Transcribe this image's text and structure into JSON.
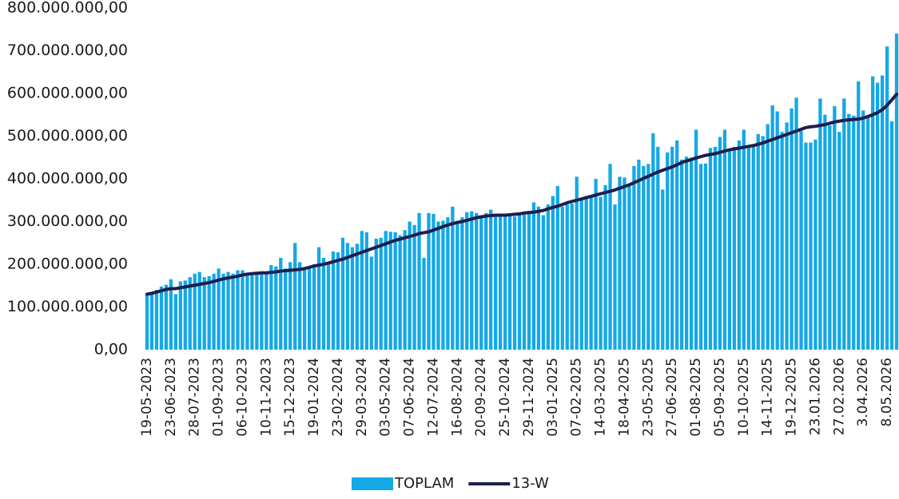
{
  "chart_data": {
    "type": "bar",
    "categories": [
      "19-05-2023",
      null,
      null,
      null,
      null,
      "23-06-2023",
      null,
      null,
      null,
      null,
      "28-07-2023",
      null,
      null,
      null,
      null,
      "01-09-2023",
      null,
      null,
      null,
      null,
      "06-10-2023",
      null,
      null,
      null,
      null,
      "10-11-2023",
      null,
      null,
      null,
      null,
      "15-12-2023",
      null,
      null,
      null,
      null,
      "19-01-2024",
      null,
      null,
      null,
      null,
      "23-02-2024",
      null,
      null,
      null,
      null,
      "29-03-2024",
      null,
      null,
      null,
      null,
      "03-05-2024",
      null,
      null,
      null,
      null,
      "07-06-2024",
      null,
      null,
      null,
      null,
      "12-07-2024",
      null,
      null,
      null,
      null,
      "16-08-2024",
      null,
      null,
      null,
      null,
      "20-09-2024",
      null,
      null,
      null,
      null,
      "25-10-2024",
      null,
      null,
      null,
      null,
      "29-11-2024",
      null,
      null,
      null,
      null,
      "03-01-2025",
      null,
      null,
      null,
      null,
      "07-02-2025",
      null,
      null,
      null,
      null,
      "14-03-2025",
      null,
      null,
      null,
      null,
      "18-04-2025",
      null,
      null,
      null,
      null,
      "23-05-2025",
      null,
      null,
      null,
      null,
      "27-06-2025",
      null,
      null,
      null,
      null,
      "01-08-2025",
      null,
      null,
      null,
      null,
      "05-09-2025",
      null,
      null,
      null,
      null,
      "10-10-2025",
      null,
      null,
      null,
      null,
      "14-11-2025",
      null,
      null,
      null,
      null,
      "19-12-2025",
      null,
      null,
      null,
      null,
      "23.01.2026",
      null,
      null,
      null,
      null,
      "27.02.2026",
      null,
      null,
      null,
      null,
      "3.04.2026",
      null,
      null,
      null,
      null,
      "8.05.2026",
      null,
      null
    ],
    "series": [
      {
        "name": "TOPLAM",
        "color": "#14a8e6",
        "values": [
          130000000,
          135000000,
          140000000,
          148000000,
          152000000,
          165000000,
          130000000,
          160000000,
          162000000,
          170000000,
          178000000,
          182000000,
          170000000,
          172000000,
          178000000,
          190000000,
          178000000,
          182000000,
          178000000,
          186000000,
          186000000,
          180000000,
          178000000,
          182000000,
          180000000,
          183000000,
          198000000,
          195000000,
          215000000,
          190000000,
          205000000,
          250000000,
          205000000,
          190000000,
          195000000,
          200000000,
          240000000,
          215000000,
          205000000,
          230000000,
          228000000,
          262000000,
          250000000,
          240000000,
          248000000,
          278000000,
          275000000,
          218000000,
          260000000,
          262000000,
          278000000,
          276000000,
          275000000,
          268000000,
          280000000,
          300000000,
          292000000,
          320000000,
          215000000,
          320000000,
          318000000,
          300000000,
          302000000,
          310000000,
          335000000,
          300000000,
          310000000,
          322000000,
          324000000,
          320000000,
          315000000,
          320000000,
          328000000,
          312000000,
          315000000,
          315000000,
          318000000,
          312000000,
          320000000,
          318000000,
          325000000,
          345000000,
          335000000,
          315000000,
          340000000,
          360000000,
          383000000,
          335000000,
          340000000,
          342000000,
          405000000,
          355000000,
          360000000,
          362000000,
          400000000,
          358000000,
          385000000,
          435000000,
          340000000,
          405000000,
          403000000,
          385000000,
          430000000,
          445000000,
          430000000,
          435000000,
          507000000,
          475000000,
          375000000,
          462000000,
          475000000,
          490000000,
          445000000,
          452000000,
          450000000,
          515000000,
          435000000,
          436000000,
          472000000,
          475000000,
          498000000,
          515000000,
          470000000,
          475000000,
          490000000,
          515000000,
          475000000,
          478000000,
          505000000,
          500000000,
          528000000,
          572000000,
          558000000,
          510000000,
          532000000,
          565000000,
          590000000,
          512000000,
          485000000,
          485000000,
          492000000,
          588000000,
          550000000,
          525000000,
          570000000,
          510000000,
          588000000,
          552000000,
          548000000,
          628000000,
          560000000,
          545000000,
          640000000,
          625000000,
          642000000,
          710000000,
          535000000,
          740000000
        ]
      },
      {
        "name": "13-W",
        "type": "line",
        "color": "#1c1f4a",
        "values": [
          130000000,
          132000000,
          135000000,
          138000000,
          141000000,
          143000000,
          143000000,
          145000000,
          147000000,
          149000000,
          151000000,
          153000000,
          155000000,
          157000000,
          160000000,
          163000000,
          166000000,
          168000000,
          170000000,
          172000000,
          175000000,
          177000000,
          178000000,
          179000000,
          180000000,
          180000000,
          181000000,
          182000000,
          184000000,
          185000000,
          186000000,
          187000000,
          188000000,
          190000000,
          193000000,
          196000000,
          198000000,
          200000000,
          203000000,
          206000000,
          209000000,
          212000000,
          216000000,
          220000000,
          224000000,
          228000000,
          232000000,
          236000000,
          240000000,
          244000000,
          248000000,
          252000000,
          256000000,
          259000000,
          262000000,
          265000000,
          268000000,
          272000000,
          274000000,
          276000000,
          280000000,
          284000000,
          288000000,
          292000000,
          295000000,
          298000000,
          300000000,
          303000000,
          306000000,
          309000000,
          311000000,
          313000000,
          314000000,
          315000000,
          315000000,
          315000000,
          316000000,
          317000000,
          318000000,
          320000000,
          321000000,
          322000000,
          324000000,
          326000000,
          330000000,
          333000000,
          336000000,
          340000000,
          344000000,
          347000000,
          350000000,
          353000000,
          356000000,
          359000000,
          362000000,
          365000000,
          368000000,
          371000000,
          374000000,
          378000000,
          382000000,
          386000000,
          391000000,
          396000000,
          401000000,
          406000000,
          411000000,
          416000000,
          420000000,
          424000000,
          428000000,
          433000000,
          438000000,
          442000000,
          445000000,
          449000000,
          452000000,
          455000000,
          457000000,
          459000000,
          462000000,
          465000000,
          468000000,
          470000000,
          472000000,
          474000000,
          476000000,
          478000000,
          481000000,
          484000000,
          488000000,
          492000000,
          496000000,
          500000000,
          504000000,
          508000000,
          512000000,
          516000000,
          520000000,
          522000000,
          523000000,
          525000000,
          527000000,
          530000000,
          533000000,
          535000000,
          537000000,
          538000000,
          539000000,
          540000000,
          542000000,
          546000000,
          550000000,
          555000000,
          562000000,
          572000000,
          585000000,
          598000000
        ]
      }
    ],
    "ylim": [
      0,
      800000000
    ],
    "yticks": [
      {
        "value": 0,
        "label": "0,00"
      },
      {
        "value": 100000000,
        "label": "100.000.000,00"
      },
      {
        "value": 200000000,
        "label": "200.000.000,00"
      },
      {
        "value": 300000000,
        "label": "300.000.000,00"
      },
      {
        "value": 400000000,
        "label": "400.000.000,00"
      },
      {
        "value": 500000000,
        "label": "500.000.000,00"
      },
      {
        "value": 600000000,
        "label": "600.000.000,00"
      },
      {
        "value": 700000000,
        "label": "700.000.000,00"
      },
      {
        "value": 800000000,
        "label": "800.000.000,00"
      }
    ],
    "grid": false,
    "legend": "bottom"
  }
}
